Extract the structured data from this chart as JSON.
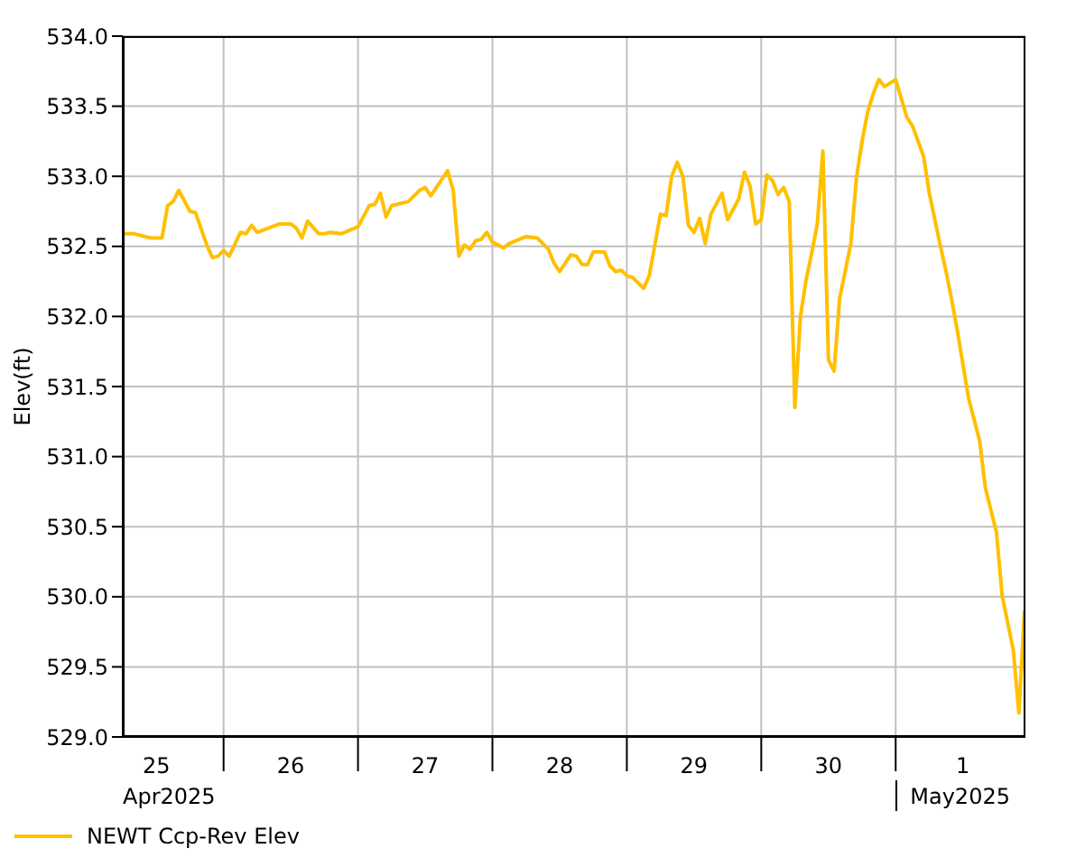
{
  "chart_data": {
    "type": "line",
    "ylabel": "Elev(ft)",
    "x": [
      "2025-04-25T06:00",
      "2025-04-25T08:00",
      "2025-04-25T11:00",
      "2025-04-25T13:00",
      "2025-04-25T14:00",
      "2025-04-25T15:00",
      "2025-04-25T16:00",
      "2025-04-25T18:00",
      "2025-04-25T19:00",
      "2025-04-25T21:00",
      "2025-04-25T22:00",
      "2025-04-25T23:00",
      "2025-04-26T00:00",
      "2025-04-26T01:00",
      "2025-04-26T03:00",
      "2025-04-26T04:00",
      "2025-04-26T05:00",
      "2025-04-26T06:00",
      "2025-04-26T08:00",
      "2025-04-26T10:00",
      "2025-04-26T12:00",
      "2025-04-26T13:00",
      "2025-04-26T14:00",
      "2025-04-26T15:00",
      "2025-04-26T17:00",
      "2025-04-26T18:00",
      "2025-04-26T19:00",
      "2025-04-26T21:00",
      "2025-04-27T00:00",
      "2025-04-27T02:00",
      "2025-04-27T03:00",
      "2025-04-27T04:00",
      "2025-04-27T05:00",
      "2025-04-27T06:00",
      "2025-04-27T09:00",
      "2025-04-27T11:00",
      "2025-04-27T12:00",
      "2025-04-27T13:00",
      "2025-04-27T16:00",
      "2025-04-27T17:00",
      "2025-04-27T18:00",
      "2025-04-27T19:00",
      "2025-04-27T20:00",
      "2025-04-27T21:00",
      "2025-04-27T22:00",
      "2025-04-27T23:00",
      "2025-04-28T00:00",
      "2025-04-28T02:00",
      "2025-04-28T03:00",
      "2025-04-28T06:00",
      "2025-04-28T08:00",
      "2025-04-28T10:00",
      "2025-04-28T11:00",
      "2025-04-28T12:00",
      "2025-04-28T14:00",
      "2025-04-28T15:00",
      "2025-04-28T16:00",
      "2025-04-28T17:00",
      "2025-04-28T18:00",
      "2025-04-28T20:00",
      "2025-04-28T21:00",
      "2025-04-28T22:00",
      "2025-04-28T23:00",
      "2025-04-29T00:00",
      "2025-04-29T01:00",
      "2025-04-29T03:00",
      "2025-04-29T04:00",
      "2025-04-29T06:00",
      "2025-04-29T07:00",
      "2025-04-29T08:00",
      "2025-04-29T09:00",
      "2025-04-29T10:00",
      "2025-04-29T11:00",
      "2025-04-29T12:00",
      "2025-04-29T13:00",
      "2025-04-29T14:00",
      "2025-04-29T15:00",
      "2025-04-29T17:00",
      "2025-04-29T18:00",
      "2025-04-29T20:00",
      "2025-04-29T21:00",
      "2025-04-29T22:00",
      "2025-04-29T23:00",
      "2025-04-30T00:00",
      "2025-04-30T01:00",
      "2025-04-30T02:00",
      "2025-04-30T03:00",
      "2025-04-30T04:00",
      "2025-04-30T05:00",
      "2025-04-30T06:00",
      "2025-04-30T07:00",
      "2025-04-30T08:00",
      "2025-04-30T09:00",
      "2025-04-30T10:00",
      "2025-04-30T11:00",
      "2025-04-30T12:00",
      "2025-04-30T13:00",
      "2025-04-30T14:00",
      "2025-04-30T16:00",
      "2025-04-30T17:00",
      "2025-04-30T18:00",
      "2025-04-30T19:00",
      "2025-04-30T20:00",
      "2025-04-30T21:00",
      "2025-04-30T22:00",
      "2025-05-01T00:00",
      "2025-05-01T02:00",
      "2025-05-01T03:00",
      "2025-05-01T05:00",
      "2025-05-01T06:00",
      "2025-05-01T08:00",
      "2025-05-01T09:00",
      "2025-05-01T10:00",
      "2025-05-01T11:00",
      "2025-05-01T13:00",
      "2025-05-01T15:00",
      "2025-05-01T16:00",
      "2025-05-01T18:00",
      "2025-05-01T19:00",
      "2025-05-01T21:00",
      "2025-05-01T22:00",
      "2025-05-01T23:00"
    ],
    "series": [
      {
        "name": "NEWT Ccp-Rev Elev",
        "color": "#ffc000",
        "values": [
          532.59,
          532.59,
          532.56,
          532.56,
          532.79,
          532.82,
          532.9,
          532.75,
          532.74,
          532.51,
          532.42,
          532.43,
          532.47,
          532.43,
          532.6,
          532.59,
          532.65,
          532.6,
          532.63,
          532.66,
          532.66,
          532.63,
          532.56,
          532.68,
          532.59,
          532.59,
          532.6,
          532.59,
          532.64,
          532.79,
          532.8,
          532.88,
          532.71,
          532.79,
          532.82,
          532.9,
          532.92,
          532.86,
          533.04,
          532.9,
          532.43,
          532.51,
          532.48,
          532.54,
          532.55,
          532.6,
          532.53,
          532.49,
          532.52,
          532.57,
          532.56,
          532.48,
          532.38,
          532.32,
          532.44,
          532.43,
          532.37,
          532.37,
          532.46,
          532.46,
          532.36,
          532.32,
          532.33,
          532.29,
          532.28,
          532.2,
          532.29,
          532.73,
          532.72,
          533.0,
          533.1,
          533.0,
          532.65,
          532.6,
          532.7,
          532.52,
          532.73,
          532.88,
          532.69,
          532.84,
          533.03,
          532.93,
          532.66,
          532.69,
          533.01,
          532.97,
          532.87,
          532.92,
          532.82,
          531.35,
          532.0,
          532.26,
          532.45,
          532.66,
          533.18,
          531.69,
          531.61,
          532.13,
          532.52,
          532.99,
          533.25,
          533.46,
          533.59,
          533.69,
          533.64,
          533.69,
          533.42,
          533.36,
          533.14,
          532.88,
          532.5,
          532.32,
          532.12,
          531.9,
          531.42,
          531.11,
          530.78,
          530.46,
          530.01,
          529.62,
          529.17,
          529.9
        ]
      }
    ],
    "xlim": [
      "2025-04-25T06:00",
      "2025-05-01T23:10"
    ],
    "xticks": [
      {
        "value": "2025-04-25T12:00",
        "label": "25"
      },
      {
        "value": "2025-04-26T00:00",
        "label": null
      },
      {
        "value": "2025-04-26T12:00",
        "label": "26"
      },
      {
        "value": "2025-04-27T00:00",
        "label": null
      },
      {
        "value": "2025-04-27T12:00",
        "label": "27"
      },
      {
        "value": "2025-04-28T00:00",
        "label": null
      },
      {
        "value": "2025-04-28T12:00",
        "label": "28"
      },
      {
        "value": "2025-04-29T00:00",
        "label": null
      },
      {
        "value": "2025-04-29T12:00",
        "label": "29"
      },
      {
        "value": "2025-04-30T00:00",
        "label": null
      },
      {
        "value": "2025-04-30T12:00",
        "label": "30"
      },
      {
        "value": "2025-05-01T00:00",
        "label": null
      },
      {
        "value": "2025-05-01T12:00",
        "label": "1"
      }
    ],
    "ylim": [
      529,
      534
    ],
    "yticks": [
      {
        "value": 529,
        "label": "529.0"
      },
      {
        "value": 529.5,
        "label": "529.5"
      },
      {
        "value": 530,
        "label": "530.0"
      },
      {
        "value": 530.5,
        "label": "530.5"
      },
      {
        "value": 531,
        "label": "531.0"
      },
      {
        "value": 531.5,
        "label": "531.5"
      },
      {
        "value": 532,
        "label": "532.0"
      },
      {
        "value": 532.5,
        "label": "532.5"
      },
      {
        "value": 533,
        "label": "533.0"
      },
      {
        "value": 533.5,
        "label": "533.5"
      },
      {
        "value": 534,
        "label": "534.0"
      }
    ],
    "annotations": [
      "Apr2025",
      "May2025"
    ],
    "grid": true,
    "legend": "bottom left",
    "marker": "none",
    "line_style": "solid"
  }
}
